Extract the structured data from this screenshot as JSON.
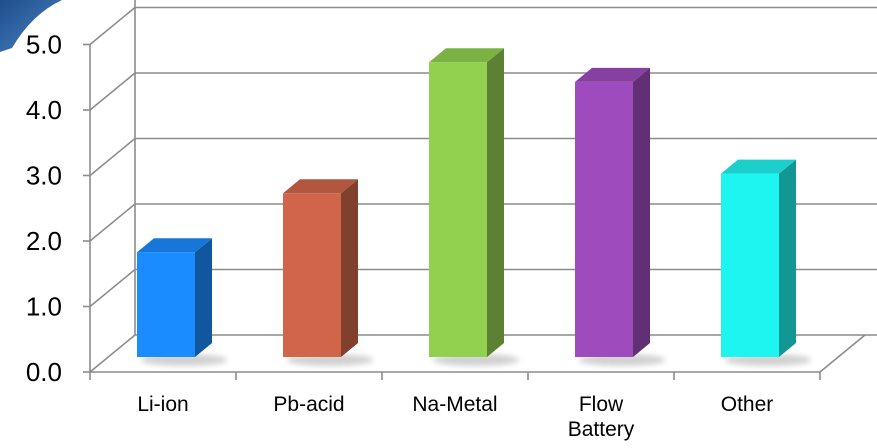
{
  "chart_data": {
    "type": "bar",
    "title": "",
    "xlabel": "",
    "ylabel": "",
    "categories": [
      "Li-ion",
      "Pb-acid",
      "Na-Metal",
      "Flow\nBattery",
      "Other"
    ],
    "values": [
      1.6,
      2.5,
      4.5,
      4.2,
      2.8
    ],
    "colors": [
      "#1a8cff",
      "#d0654a",
      "#92d050",
      "#9e4bbd",
      "#1ef4f0"
    ],
    "y_ticks": [
      "0.0",
      "1.0",
      "2.0",
      "3.0",
      "4.0",
      "5.0"
    ],
    "ylim": [
      0,
      6
    ],
    "grid": true,
    "style": "3d-column",
    "legend": "none"
  }
}
